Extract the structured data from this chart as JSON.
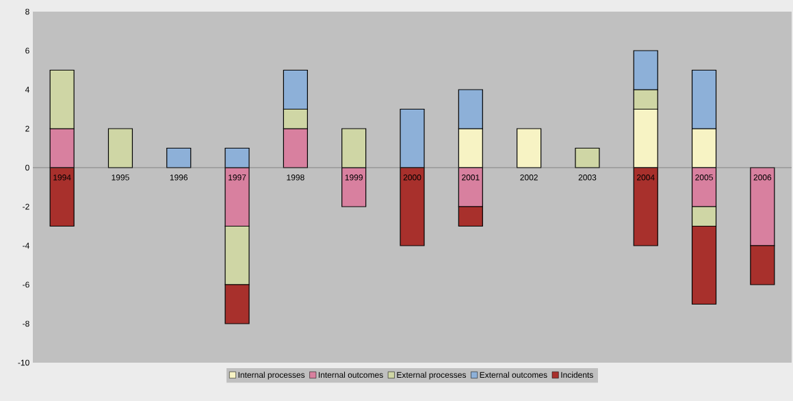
{
  "chart_data": {
    "type": "bar",
    "stacked": true,
    "legend": "bottom",
    "categories": [
      "1994",
      "1995",
      "1996",
      "1997",
      "1998",
      "1999",
      "2000",
      "2001",
      "2002",
      "2003",
      "2004",
      "2005",
      "2006"
    ],
    "ylim": [
      -10,
      8
    ],
    "yticks": [
      -10,
      -8,
      -6,
      -4,
      -2,
      0,
      2,
      4,
      6,
      8
    ],
    "series": [
      {
        "name": "Internal processes",
        "color": "#f7f3c4",
        "values": [
          null,
          null,
          null,
          null,
          null,
          null,
          null,
          2,
          2,
          null,
          3,
          2,
          null
        ]
      },
      {
        "name": "Internal outcomes",
        "color": "#d8809f",
        "values": [
          2,
          null,
          null,
          -3,
          2,
          -2,
          null,
          -2,
          null,
          null,
          null,
          -2,
          -4
        ]
      },
      {
        "name": "External processes",
        "color": "#cfd6a5",
        "values": [
          3,
          2,
          null,
          -3,
          1,
          2,
          null,
          null,
          null,
          1,
          1,
          -1,
          null
        ]
      },
      {
        "name": "External outcomes",
        "color": "#8db0d8",
        "values": [
          null,
          null,
          1,
          1,
          2,
          null,
          3,
          2,
          null,
          null,
          2,
          3,
          null
        ]
      },
      {
        "name": "Incidents",
        "color": "#a8302c",
        "values": [
          -3,
          null,
          null,
          -2,
          null,
          null,
          -4,
          -1,
          null,
          null,
          -4,
          -4,
          -2
        ]
      }
    ]
  }
}
